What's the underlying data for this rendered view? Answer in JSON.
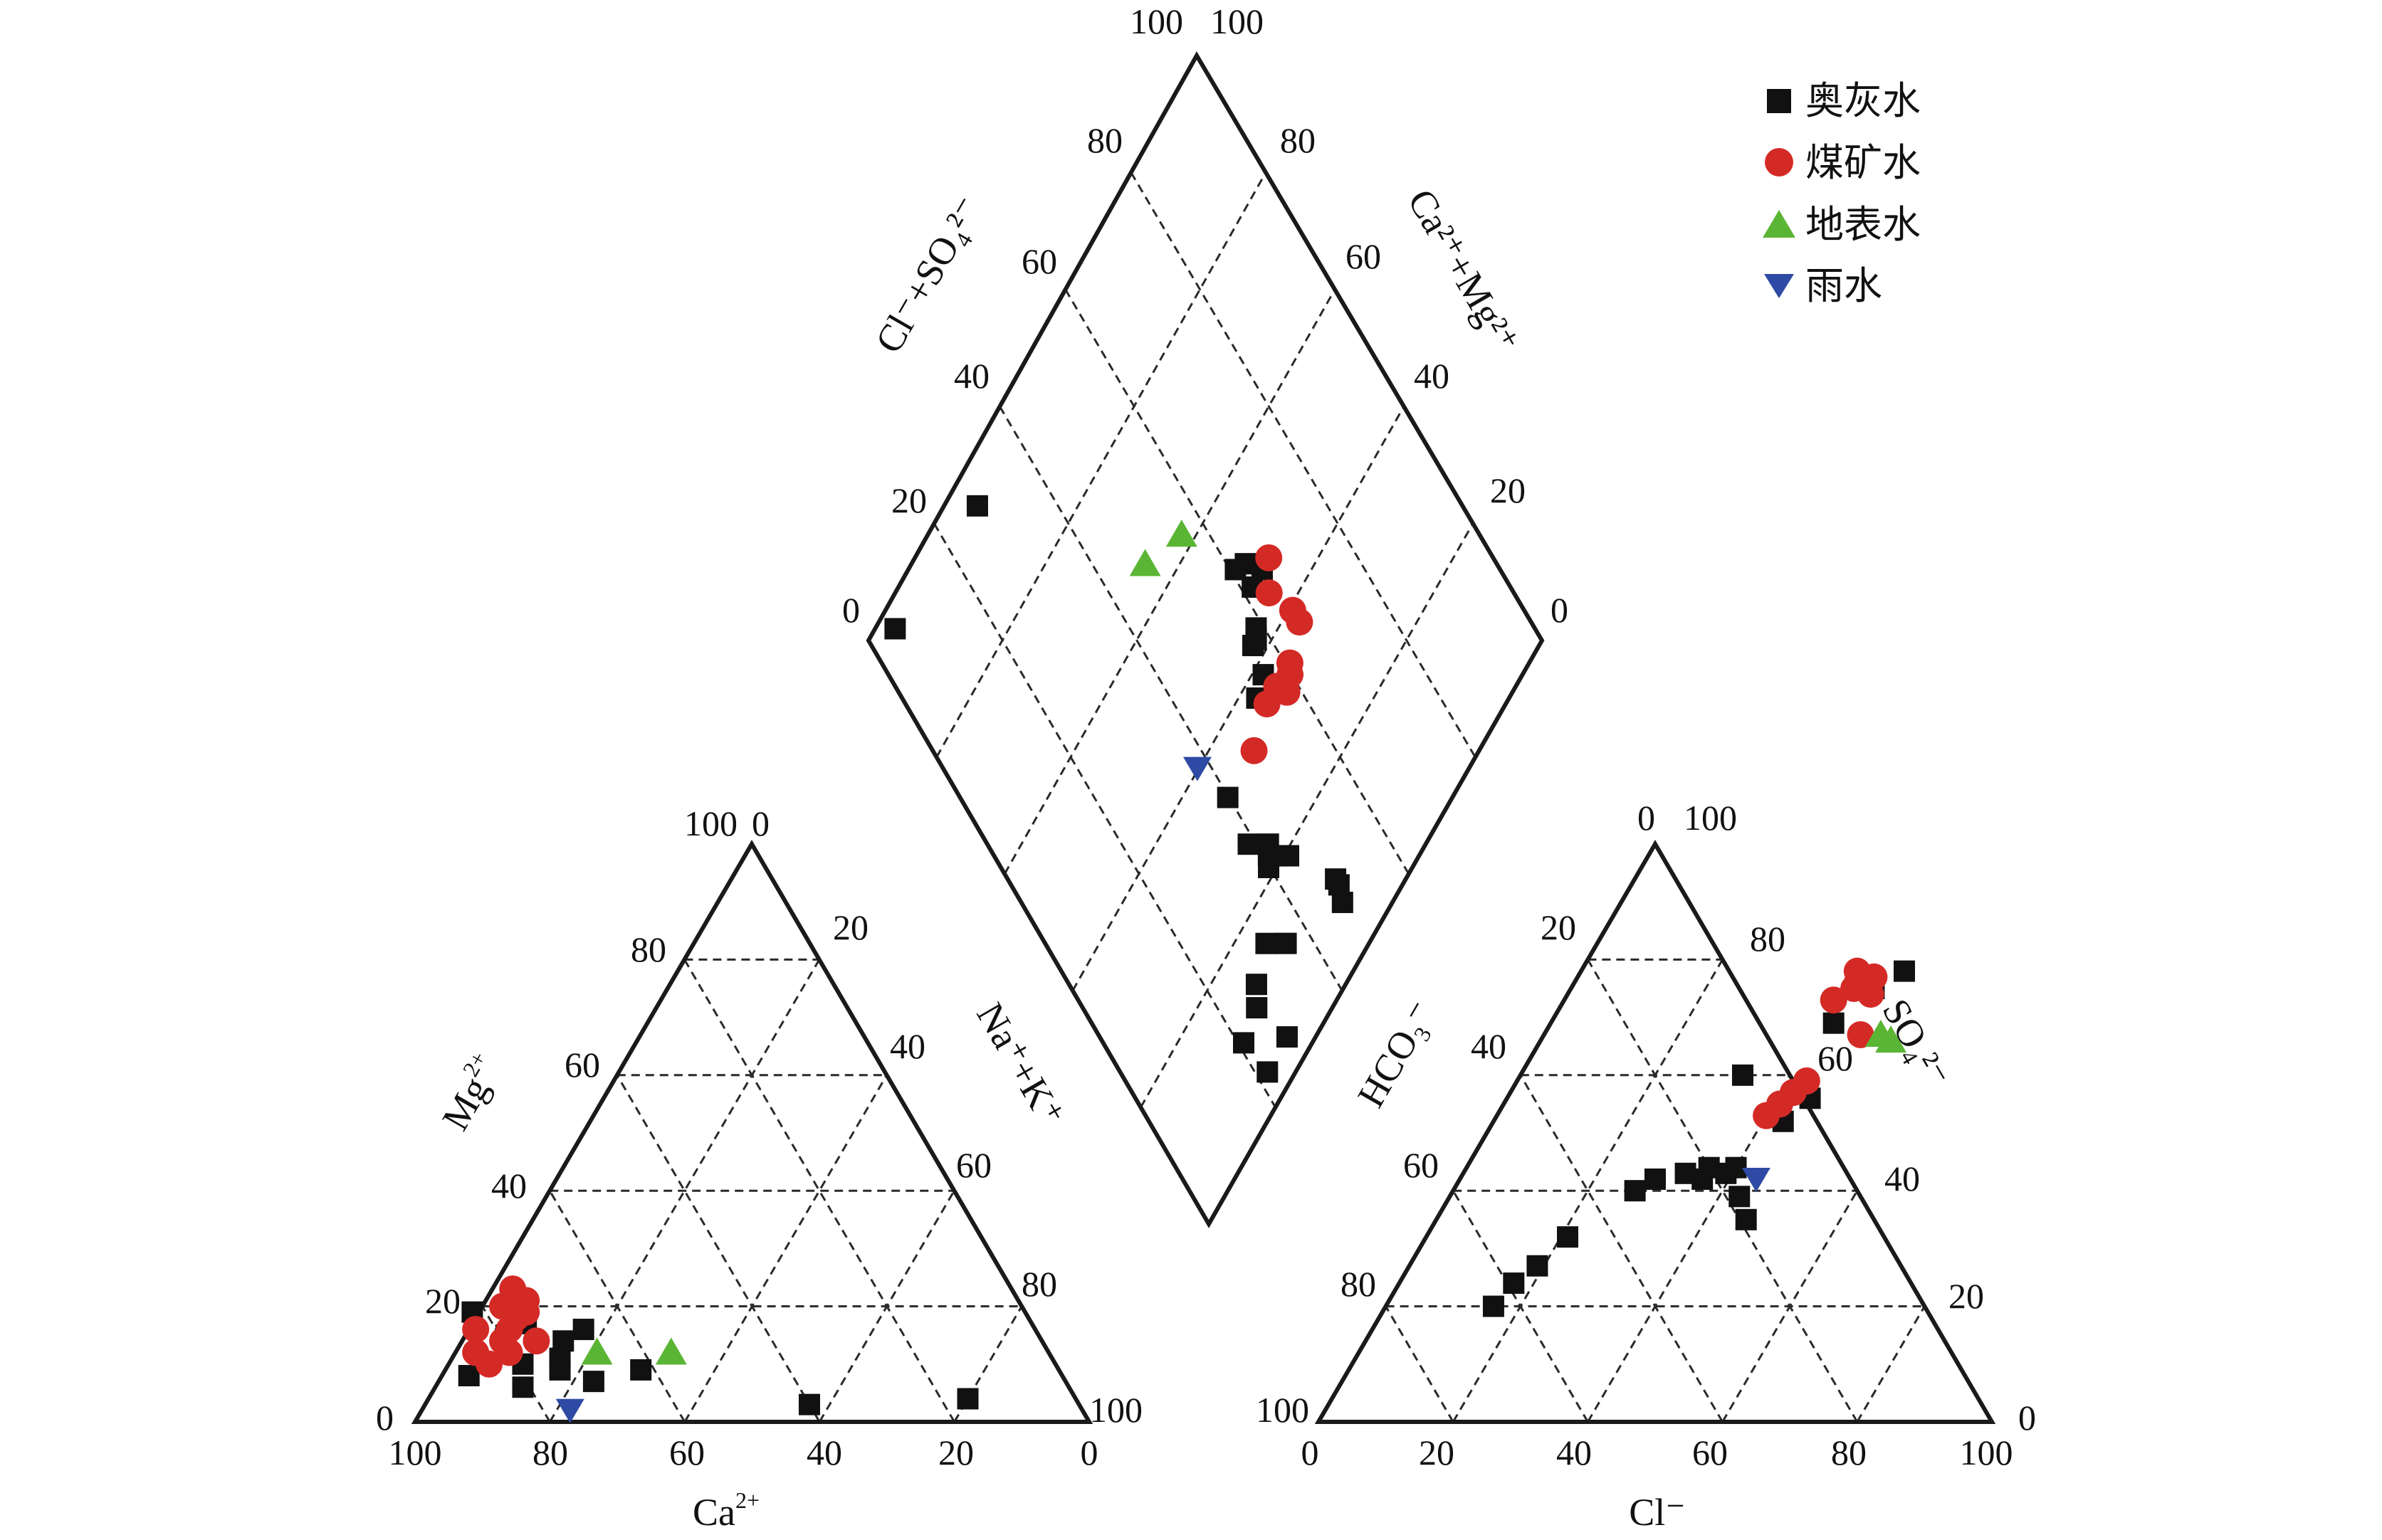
{
  "chart_data": {
    "type": "scatter",
    "title": "",
    "colors": {
      "ordovician": "#111111",
      "coal_mine": "#d42a26",
      "surface": "#5bb534",
      "rain": "#2f4aa4"
    },
    "legend": {
      "placement": "top-right",
      "entries": [
        {
          "key": "ordovician",
          "label": "奥灰水",
          "marker": "square"
        },
        {
          "key": "coal_mine",
          "label": "煤矿水",
          "marker": "circle"
        },
        {
          "key": "surface",
          "label": "地表水",
          "marker": "triangle-up"
        },
        {
          "key": "rain",
          "label": "雨水",
          "marker": "triangle-down"
        }
      ]
    },
    "cation_triangle": {
      "xlabel": "Ca",
      "xlabel_sup": "2+",
      "left_label": "Mg",
      "left_label_sup": "2+",
      "right_label": "Na⁺+K⁺",
      "bottom_ticks": [
        "100",
        "80",
        "60",
        "40",
        "20",
        "0"
      ],
      "left_ticks": [
        "0",
        "20",
        "40",
        "60",
        "80",
        "100"
      ],
      "right_ticks": [
        "0",
        "20",
        "40",
        "60",
        "80",
        "100"
      ],
      "points": {
        "ordovician": [
          [
            88,
            8
          ],
          [
            81,
            6
          ],
          [
            79,
            10
          ],
          [
            74,
            9
          ],
          [
            73,
            11
          ],
          [
            71,
            14
          ],
          [
            70,
            7
          ],
          [
            67,
            16
          ],
          [
            79,
            15
          ],
          [
            75,
            17
          ],
          [
            82,
            19
          ],
          [
            62,
            9
          ],
          [
            40,
            3
          ],
          [
            16,
            4
          ]
        ],
        "coal_mine": [
          [
            85,
            12
          ],
          [
            84,
            10
          ],
          [
            83,
            16
          ],
          [
            80,
            12
          ],
          [
            78,
            16
          ],
          [
            76,
            18
          ],
          [
            75,
            14
          ],
          [
            77,
            20
          ],
          [
            74,
            19
          ],
          [
            73,
            21
          ],
          [
            74,
            23
          ],
          [
            80,
            14
          ]
        ],
        "surface": [
          [
            67,
            12
          ],
          [
            56,
            12
          ]
        ],
        "rain": [
          [
            76,
            2
          ]
        ]
      }
    },
    "anion_triangle": {
      "xlabel": "Cl⁻",
      "left_label": "HCO₃⁻",
      "right_label": "SO₄²⁻",
      "bottom_ticks": [
        "0",
        "20",
        "40",
        "60",
        "80",
        "100"
      ],
      "left_ticks": [
        "100",
        "80",
        "60",
        "40",
        "20",
        "0"
      ],
      "right_ticks": [
        "0",
        "20",
        "40",
        "60",
        "80",
        "100"
      ],
      "points": {
        "ordovician": [
          [
            16,
            20
          ],
          [
            17,
            24
          ],
          [
            19,
            27
          ],
          [
            21,
            32
          ],
          [
            27,
            40
          ],
          [
            29,
            42
          ],
          [
            33,
            43
          ],
          [
            36,
            42
          ],
          [
            43,
            39
          ],
          [
            46,
            35
          ],
          [
            39,
            43
          ],
          [
            36,
            44
          ],
          [
            43,
            52
          ],
          [
            45,
            56
          ],
          [
            33,
            60
          ],
          [
            42,
            69
          ],
          [
            45,
            75
          ],
          [
            48,
            78
          ],
          [
            40,
            44
          ]
        ],
        "coal_mine": [
          [
            40,
            73
          ],
          [
            42,
            75
          ],
          [
            41,
            78
          ],
          [
            44,
            77
          ],
          [
            45,
            74
          ],
          [
            42,
            76
          ],
          [
            47,
            67
          ],
          [
            41,
            55
          ],
          [
            42,
            57
          ],
          [
            43,
            59
          ],
          [
            40,
            53
          ]
        ],
        "surface": [
          [
            50,
            67
          ],
          [
            52,
            66
          ]
        ],
        "rain": [
          [
            44,
            42
          ]
        ]
      }
    },
    "diamond": {
      "left_label": "Cl⁻+SO₄²⁻",
      "right_label": "Ca²⁺+Mg²⁺",
      "left_ticks": [
        "0",
        "20",
        "40",
        "60",
        "80",
        "100"
      ],
      "right_ticks": [
        "0",
        "20",
        "40",
        "60",
        "80",
        "100"
      ],
      "points": {
        "ordovician": [
          [
            22,
            4
          ],
          [
            21,
            10
          ],
          [
            26,
            11
          ],
          [
            28,
            4
          ],
          [
            28,
            13
          ],
          [
            33,
            15
          ],
          [
            36,
            12
          ],
          [
            42,
            21
          ],
          [
            43,
            20
          ],
          [
            44,
            19
          ],
          [
            42,
            23
          ],
          [
            41,
            22
          ],
          [
            40,
            21
          ],
          [
            48,
            7
          ],
          [
            39,
            26
          ],
          [
            40,
            33
          ],
          [
            49,
            9
          ],
          [
            49,
            10
          ],
          [
            56,
            38
          ],
          [
            58,
            42
          ],
          [
            62,
            47
          ],
          [
            65,
            47
          ],
          [
            63,
            50
          ],
          [
            61,
            51
          ],
          [
            59,
            43
          ],
          [
            57,
            42
          ],
          [
            53,
            37
          ],
          [
            28,
            95
          ],
          [
            5,
            97
          ]
        ],
        "coal_mine": [
          [
            66,
            39
          ],
          [
            66,
            37
          ],
          [
            61,
            35
          ],
          [
            60,
            34
          ],
          [
            58,
            33
          ],
          [
            57,
            35
          ],
          [
            54,
            35
          ],
          [
            48,
            33
          ],
          [
            64,
            44
          ],
          [
            67,
            47
          ]
        ],
        "surface": [
          [
            56,
            62
          ],
          [
            48,
            65
          ]
        ],
        "rain": [
          [
            38,
            40
          ]
        ]
      }
    }
  }
}
